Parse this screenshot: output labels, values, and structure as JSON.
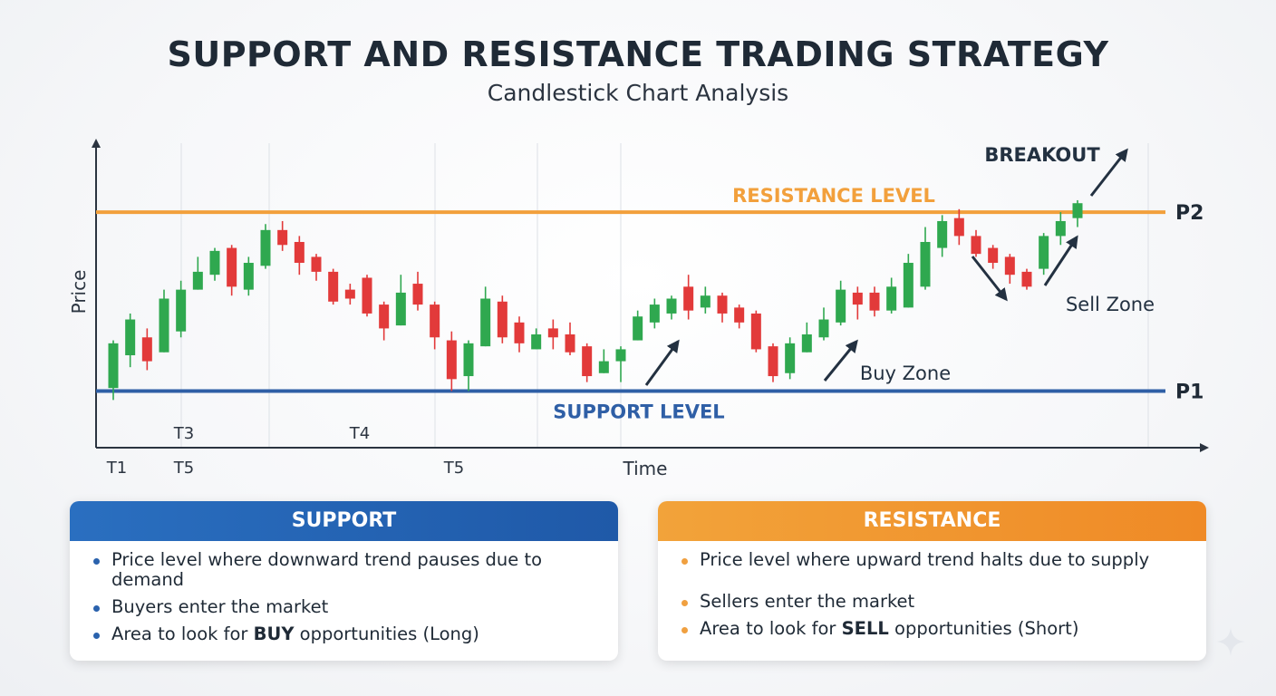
{
  "title": "SUPPORT AND RESISTANCE TRADING STRATEGY",
  "subtitle": "Candlestick Chart Analysis",
  "chart_data": {
    "type": "candlestick",
    "xlabel": "Time",
    "ylabel": "Price",
    "ylim": [
      0,
      100
    ],
    "levels": {
      "resistance": {
        "label": "RESISTANCE LEVEL",
        "value": 79,
        "marker": "P2",
        "color": "#f2a03c"
      },
      "support": {
        "label": "SUPPORT LEVEL",
        "value": 19,
        "marker": "P1",
        "color": "#2f5fa6"
      }
    },
    "time_labels": [
      "T1",
      "T3",
      "T5",
      "T4",
      "T5"
    ],
    "annotations": {
      "breakout": "BREAKOUT",
      "buy_zone": "Buy Zone",
      "sell_zone": "Sell Zone"
    },
    "colors": {
      "up": "#2fa84f",
      "down": "#e23a3a",
      "axis": "#2b3440"
    },
    "candles": [
      {
        "o": 20,
        "h": 36,
        "l": 16,
        "c": 35
      },
      {
        "o": 31,
        "h": 45,
        "l": 27,
        "c": 43
      },
      {
        "o": 37,
        "h": 40,
        "l": 26,
        "c": 29
      },
      {
        "o": 32,
        "h": 53,
        "l": 32,
        "c": 50
      },
      {
        "o": 39,
        "h": 56,
        "l": 37,
        "c": 53
      },
      {
        "o": 53,
        "h": 64,
        "l": 53,
        "c": 59
      },
      {
        "o": 58,
        "h": 67,
        "l": 56,
        "c": 66
      },
      {
        "o": 67,
        "h": 68,
        "l": 51,
        "c": 54
      },
      {
        "o": 53,
        "h": 64,
        "l": 51,
        "c": 62
      },
      {
        "o": 61,
        "h": 75,
        "l": 60,
        "c": 73
      },
      {
        "o": 73,
        "h": 76,
        "l": 66,
        "c": 68
      },
      {
        "o": 69,
        "h": 71,
        "l": 58,
        "c": 62
      },
      {
        "o": 64,
        "h": 65,
        "l": 56,
        "c": 59
      },
      {
        "o": 59,
        "h": 60,
        "l": 48,
        "c": 49
      },
      {
        "o": 53,
        "h": 55,
        "l": 48,
        "c": 50
      },
      {
        "o": 57,
        "h": 58,
        "l": 44,
        "c": 45
      },
      {
        "o": 48,
        "h": 49,
        "l": 36,
        "c": 40
      },
      {
        "o": 41,
        "h": 58,
        "l": 41,
        "c": 52
      },
      {
        "o": 55,
        "h": 59,
        "l": 46,
        "c": 48
      },
      {
        "o": 48,
        "h": 49,
        "l": 33,
        "c": 37
      },
      {
        "o": 36,
        "h": 39,
        "l": 19,
        "c": 23
      },
      {
        "o": 24,
        "h": 36,
        "l": 19,
        "c": 35
      },
      {
        "o": 34,
        "h": 54,
        "l": 34,
        "c": 50
      },
      {
        "o": 49,
        "h": 51,
        "l": 35,
        "c": 37
      },
      {
        "o": 42,
        "h": 44,
        "l": 32,
        "c": 35
      },
      {
        "o": 33,
        "h": 40,
        "l": 33,
        "c": 38
      },
      {
        "o": 40,
        "h": 43,
        "l": 33,
        "c": 37
      },
      {
        "o": 38,
        "h": 42,
        "l": 31,
        "c": 32
      },
      {
        "o": 34,
        "h": 35,
        "l": 22,
        "c": 24
      },
      {
        "o": 25,
        "h": 33,
        "l": 25,
        "c": 29
      },
      {
        "o": 29,
        "h": 34,
        "l": 22,
        "c": 33
      },
      {
        "o": 36,
        "h": 46,
        "l": 36,
        "c": 44
      },
      {
        "o": 42,
        "h": 50,
        "l": 40,
        "c": 48
      },
      {
        "o": 45,
        "h": 51,
        "l": 43,
        "c": 50
      },
      {
        "o": 54,
        "h": 58,
        "l": 43,
        "c": 46
      },
      {
        "o": 47,
        "h": 54,
        "l": 45,
        "c": 51
      },
      {
        "o": 51,
        "h": 52,
        "l": 42,
        "c": 45
      },
      {
        "o": 47,
        "h": 48,
        "l": 40,
        "c": 42
      },
      {
        "o": 45,
        "h": 46,
        "l": 32,
        "c": 33
      },
      {
        "o": 34,
        "h": 35,
        "l": 22,
        "c": 24
      },
      {
        "o": 25,
        "h": 37,
        "l": 23,
        "c": 35
      },
      {
        "o": 32,
        "h": 42,
        "l": 32,
        "c": 38
      },
      {
        "o": 37,
        "h": 47,
        "l": 36,
        "c": 43
      },
      {
        "o": 42,
        "h": 56,
        "l": 41,
        "c": 53
      },
      {
        "o": 52,
        "h": 54,
        "l": 43,
        "c": 48
      },
      {
        "o": 52,
        "h": 54,
        "l": 44,
        "c": 46
      },
      {
        "o": 46,
        "h": 57,
        "l": 45,
        "c": 54
      },
      {
        "o": 47,
        "h": 65,
        "l": 47,
        "c": 62
      },
      {
        "o": 54,
        "h": 74,
        "l": 53,
        "c": 69
      },
      {
        "o": 67,
        "h": 78,
        "l": 64,
        "c": 76
      },
      {
        "o": 77,
        "h": 80,
        "l": 68,
        "c": 71
      },
      {
        "o": 71,
        "h": 73,
        "l": 64,
        "c": 65
      },
      {
        "o": 67,
        "h": 68,
        "l": 60,
        "c": 62
      },
      {
        "o": 64,
        "h": 65,
        "l": 55,
        "c": 58
      },
      {
        "o": 59,
        "h": 60,
        "l": 53,
        "c": 54
      },
      {
        "o": 60,
        "h": 72,
        "l": 58,
        "c": 71
      },
      {
        "o": 71,
        "h": 79,
        "l": 68,
        "c": 76
      },
      {
        "o": 77,
        "h": 83,
        "l": 74,
        "c": 82
      }
    ]
  },
  "cards": {
    "support": {
      "heading": "SUPPORT",
      "line1": "Price level where downward trend pauses due to demand",
      "line2": "Buyers enter the market",
      "line3_pre": "Area to look for ",
      "line3_bold": "BUY",
      "line3_post": " opportunities (Long)"
    },
    "resistance": {
      "heading": "RESISTANCE",
      "line1": "Price level where upward trend halts due to supply",
      "line2": "Sellers enter the market",
      "line3_pre": "Area to look for ",
      "line3_bold": "SELL",
      "line3_post": " opportunities (Short)"
    }
  }
}
